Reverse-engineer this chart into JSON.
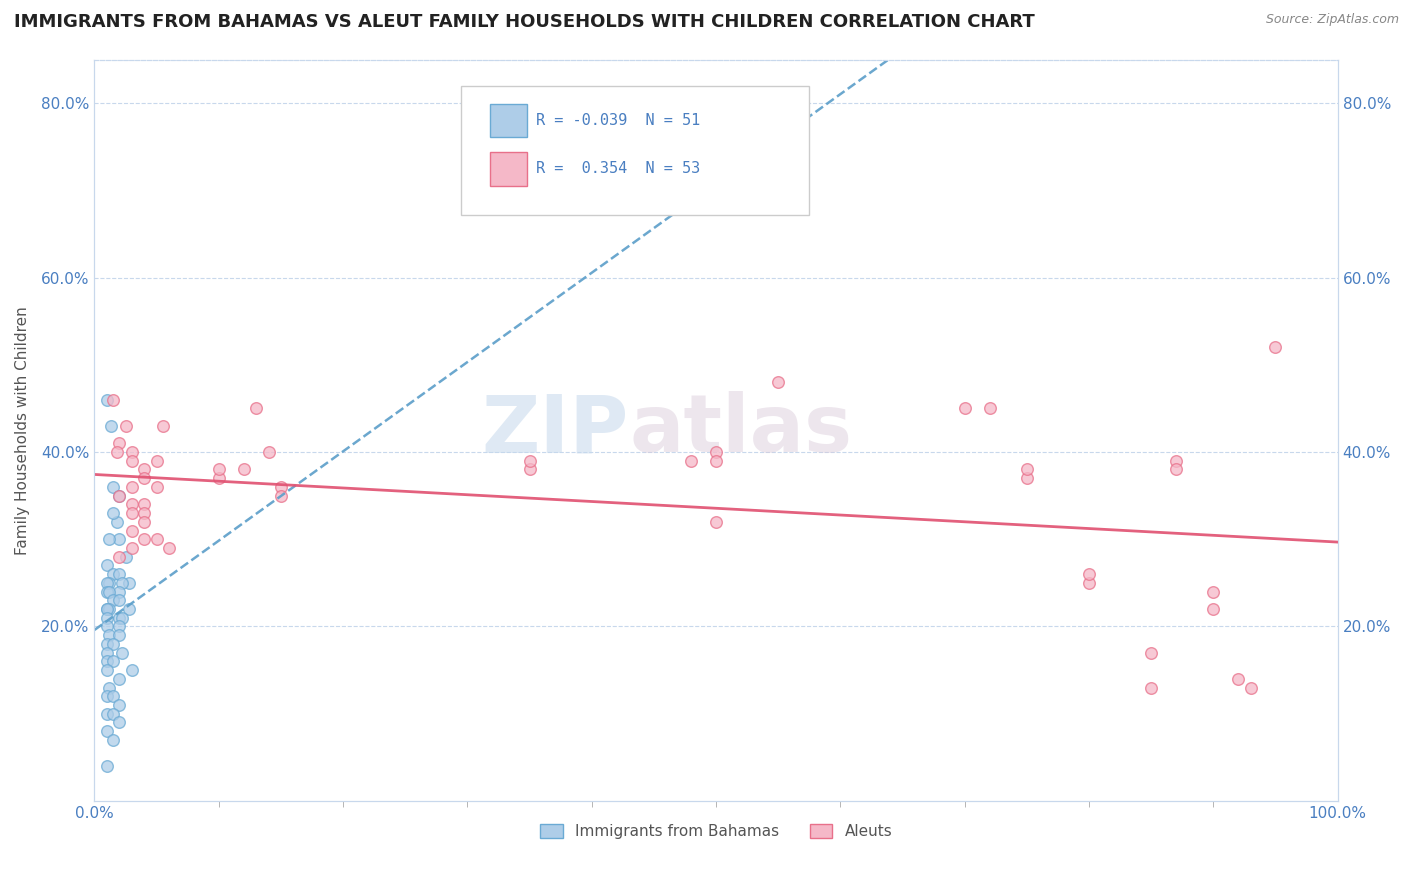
{
  "title": "IMMIGRANTS FROM BAHAMAS VS ALEUT FAMILY HOUSEHOLDS WITH CHILDREN CORRELATION CHART",
  "source": "Source: ZipAtlas.com",
  "ylabel": "Family Households with Children",
  "blue_R": "-0.039",
  "blue_N": "51",
  "pink_R": "0.354",
  "pink_N": "53",
  "blue_color": "#aecde8",
  "pink_color": "#f5b8c8",
  "blue_edge_color": "#6aaad4",
  "pink_edge_color": "#e8708a",
  "blue_line_color": "#5b9ec9",
  "pink_line_color": "#e05070",
  "background_color": "#ffffff",
  "grid_color": "#c8d8ec",
  "watermark_zip": "ZIP",
  "watermark_atlas": "atlas",
  "xlim": [
    0,
    100
  ],
  "ylim": [
    0,
    85
  ],
  "xtick_positions": [
    0,
    100
  ],
  "xtick_labels": [
    "0.0%",
    "100.0%"
  ],
  "ytick_positions": [
    20,
    40,
    60,
    80
  ],
  "ytick_labels": [
    "20.0%",
    "40.0%",
    "60.0%",
    "80.0%"
  ],
  "blue_scatter": [
    [
      1.5,
      36
    ],
    [
      1.8,
      32
    ],
    [
      2.0,
      30
    ],
    [
      1.2,
      30
    ],
    [
      1.0,
      46
    ],
    [
      1.3,
      43
    ],
    [
      2.0,
      35
    ],
    [
      1.5,
      33
    ],
    [
      2.5,
      28
    ],
    [
      1.0,
      27
    ],
    [
      1.5,
      26
    ],
    [
      2.0,
      26
    ],
    [
      2.8,
      25
    ],
    [
      1.2,
      25
    ],
    [
      1.0,
      25
    ],
    [
      2.2,
      25
    ],
    [
      1.0,
      24
    ],
    [
      2.0,
      24
    ],
    [
      1.2,
      24
    ],
    [
      1.5,
      23
    ],
    [
      2.0,
      23
    ],
    [
      2.8,
      22
    ],
    [
      1.0,
      22
    ],
    [
      1.2,
      22
    ],
    [
      1.0,
      22
    ],
    [
      2.0,
      21
    ],
    [
      1.0,
      21
    ],
    [
      2.2,
      21
    ],
    [
      1.0,
      20
    ],
    [
      2.0,
      20
    ],
    [
      1.2,
      19
    ],
    [
      2.0,
      19
    ],
    [
      1.0,
      18
    ],
    [
      1.5,
      18
    ],
    [
      2.2,
      17
    ],
    [
      1.0,
      17
    ],
    [
      1.0,
      16
    ],
    [
      1.5,
      16
    ],
    [
      3.0,
      15
    ],
    [
      1.0,
      15
    ],
    [
      2.0,
      14
    ],
    [
      1.2,
      13
    ],
    [
      1.0,
      12
    ],
    [
      1.5,
      12
    ],
    [
      2.0,
      11
    ],
    [
      1.0,
      10
    ],
    [
      1.5,
      10
    ],
    [
      2.0,
      9
    ],
    [
      1.0,
      8
    ],
    [
      1.5,
      7
    ],
    [
      1.0,
      4
    ]
  ],
  "pink_scatter": [
    [
      1.5,
      46
    ],
    [
      2.5,
      43
    ],
    [
      5.5,
      43
    ],
    [
      2.0,
      41
    ],
    [
      1.8,
      40
    ],
    [
      3.0,
      40
    ],
    [
      3.0,
      39
    ],
    [
      5.0,
      39
    ],
    [
      4.0,
      38
    ],
    [
      4.0,
      37
    ],
    [
      3.0,
      36
    ],
    [
      5.0,
      36
    ],
    [
      2.0,
      35
    ],
    [
      3.0,
      34
    ],
    [
      4.0,
      34
    ],
    [
      4.0,
      33
    ],
    [
      3.0,
      33
    ],
    [
      4.0,
      32
    ],
    [
      3.0,
      31
    ],
    [
      4.0,
      30
    ],
    [
      5.0,
      30
    ],
    [
      3.0,
      29
    ],
    [
      6.0,
      29
    ],
    [
      2.0,
      28
    ],
    [
      13.0,
      45
    ],
    [
      14.0,
      40
    ],
    [
      10.0,
      37
    ],
    [
      10.0,
      38
    ],
    [
      12.0,
      38
    ],
    [
      15.0,
      36
    ],
    [
      15.0,
      35
    ],
    [
      35.0,
      38
    ],
    [
      35.0,
      39
    ],
    [
      50.0,
      32
    ],
    [
      48.0,
      39
    ],
    [
      50.0,
      40
    ],
    [
      50.0,
      39
    ],
    [
      55.0,
      48
    ],
    [
      70.0,
      45
    ],
    [
      72.0,
      45
    ],
    [
      75.0,
      37
    ],
    [
      75.0,
      38
    ],
    [
      80.0,
      25
    ],
    [
      80.0,
      26
    ],
    [
      85.0,
      17
    ],
    [
      85.0,
      13
    ],
    [
      87.0,
      39
    ],
    [
      87.0,
      38
    ],
    [
      90.0,
      24
    ],
    [
      90.0,
      22
    ],
    [
      92.0,
      14
    ],
    [
      93.0,
      13
    ],
    [
      95.0,
      52
    ]
  ],
  "title_fontsize": 13,
  "axis_fontsize": 11,
  "tick_fontsize": 11,
  "legend_fontsize": 11
}
